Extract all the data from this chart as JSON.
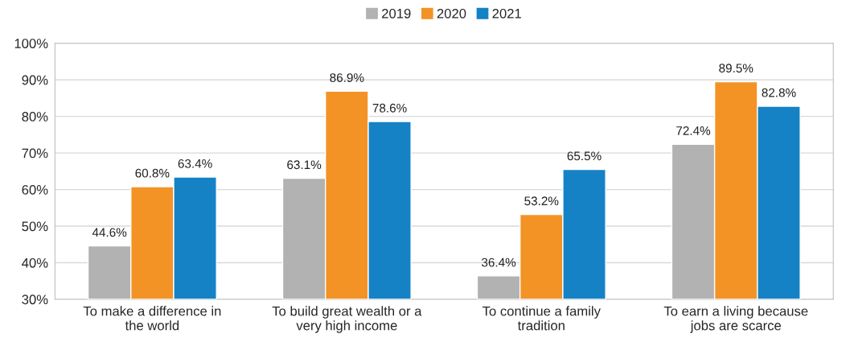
{
  "chart_data": {
    "type": "bar",
    "categories": [
      "To make a difference in\nthe world",
      "To build great wealth or a\nvery high income",
      "To continue a family\ntradition",
      "To earn a living because\njobs are scarce"
    ],
    "series": [
      {
        "name": "2019",
        "color": "#b2b2b2",
        "values": [
          44.6,
          63.1,
          36.4,
          72.4
        ],
        "value_labels": [
          "44.6%",
          "63.1%",
          "36.4%",
          "72.4%"
        ]
      },
      {
        "name": "2020",
        "color": "#f39325",
        "values": [
          60.8,
          86.9,
          53.2,
          89.5
        ],
        "value_labels": [
          "60.8%",
          "86.9%",
          "53.2%",
          "89.5%"
        ]
      },
      {
        "name": "2021",
        "color": "#1582c5",
        "values": [
          63.4,
          78.6,
          65.5,
          82.8
        ],
        "value_labels": [
          "63.4%",
          "78.6%",
          "65.5%",
          "82.8%"
        ]
      }
    ],
    "ylim": [
      30,
      100
    ],
    "yticks": [
      {
        "value": 30,
        "label": "30%"
      },
      {
        "value": 40,
        "label": "40%"
      },
      {
        "value": 50,
        "label": "50%"
      },
      {
        "value": 60,
        "label": "60%"
      },
      {
        "value": 70,
        "label": "70%"
      },
      {
        "value": 80,
        "label": "80%"
      },
      {
        "value": 90,
        "label": "90%"
      },
      {
        "value": 100,
        "label": "100%"
      }
    ],
    "grid": "y",
    "legend": "top"
  }
}
